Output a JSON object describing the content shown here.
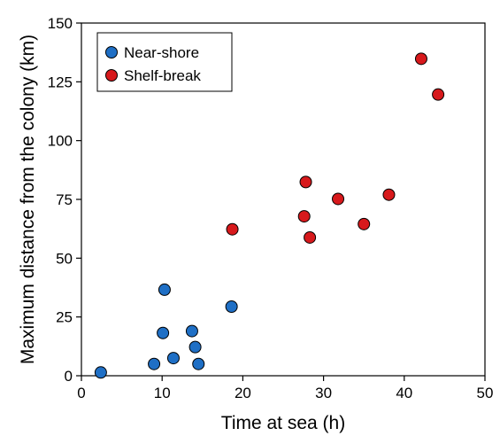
{
  "chart_data": {
    "type": "scatter",
    "xlabel": "Time at sea (h)",
    "ylabel": "Maximum distance from the colony (km)",
    "xlim": [
      0,
      50
    ],
    "ylim": [
      0,
      150
    ],
    "xticks": [
      "0",
      "10",
      "20",
      "30",
      "40",
      "50"
    ],
    "yticks": [
      "0",
      "25",
      "50",
      "75",
      "100",
      "125",
      "150"
    ],
    "grid": false,
    "legend_position": "top-left",
    "series": [
      {
        "name": "Near-shore",
        "color": "#1f6fc5",
        "points": [
          {
            "x": 2.4,
            "y": 1.4
          },
          {
            "x": 9.0,
            "y": 5.0
          },
          {
            "x": 10.1,
            "y": 18.2
          },
          {
            "x": 10.3,
            "y": 36.6
          },
          {
            "x": 11.4,
            "y": 7.5
          },
          {
            "x": 13.7,
            "y": 19.0
          },
          {
            "x": 14.1,
            "y": 12.2
          },
          {
            "x": 14.5,
            "y": 5.0
          },
          {
            "x": 18.6,
            "y": 29.4
          }
        ]
      },
      {
        "name": "Shelf-break",
        "color": "#d7191c",
        "points": [
          {
            "x": 18.7,
            "y": 62.3
          },
          {
            "x": 27.6,
            "y": 67.8
          },
          {
            "x": 27.8,
            "y": 82.4
          },
          {
            "x": 28.3,
            "y": 58.8
          },
          {
            "x": 31.8,
            "y": 75.2
          },
          {
            "x": 35.0,
            "y": 64.5
          },
          {
            "x": 38.1,
            "y": 77.0
          },
          {
            "x": 42.1,
            "y": 134.8
          },
          {
            "x": 44.2,
            "y": 119.6
          }
        ]
      }
    ]
  }
}
